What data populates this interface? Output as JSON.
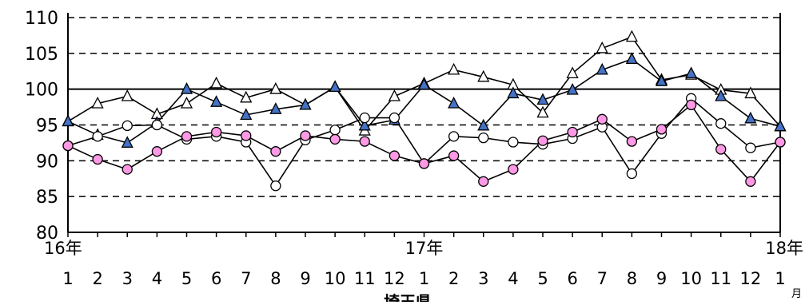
{
  "chart_data": {
    "type": "line",
    "ylim": [
      80,
      110
    ],
    "yticks": [
      "80",
      "85",
      "90",
      "95",
      "100",
      "105",
      "110"
    ],
    "reference_line": 100,
    "grid": "dashed horizontal at 85, 90, 95, 105, 110",
    "x": [
      "1",
      "2",
      "3",
      "4",
      "5",
      "6",
      "7",
      "8",
      "9",
      "10",
      "11",
      "12",
      "1",
      "2",
      "3",
      "4",
      "5",
      "6",
      "7",
      "8",
      "9",
      "10",
      "11",
      "12",
      "1"
    ],
    "year_labels": [
      {
        "label": "16年",
        "index": 0
      },
      {
        "label": "17年",
        "index": 12
      },
      {
        "label": "18年",
        "index": 24
      }
    ],
    "x_unit": "月",
    "caption": "埼玉県",
    "series": [
      {
        "marker": "triangle-open",
        "color": "#000000",
        "values": [
          95.5,
          98.0,
          99.0,
          96.5,
          98.0,
          100.8,
          98.8,
          100.0,
          97.8,
          100.3,
          94.2,
          99.0,
          100.8,
          102.7,
          101.7,
          100.6,
          96.7,
          102.2,
          105.7,
          107.3,
          101.3,
          102.0,
          99.9,
          99.4,
          94.8
        ]
      },
      {
        "marker": "triangle-filled",
        "color": "#4472c4",
        "values": [
          95.5,
          93.6,
          92.5,
          95.3,
          100.0,
          98.2,
          96.4,
          97.2,
          97.8,
          100.3,
          94.9,
          95.7,
          100.6,
          98.0,
          94.9,
          99.4,
          98.5,
          99.9,
          102.7,
          104.2,
          101.1,
          102.2,
          99.0,
          95.9,
          94.8
        ]
      },
      {
        "marker": "circle-open",
        "color": "#000000",
        "values": [
          92.1,
          93.4,
          94.9,
          95.0,
          93.0,
          93.4,
          92.6,
          86.5,
          92.9,
          94.3,
          96.0,
          96.0,
          89.6,
          93.4,
          93.2,
          92.6,
          92.3,
          93.1,
          94.7,
          88.2,
          93.8,
          98.7,
          95.2,
          91.8,
          92.6
        ]
      },
      {
        "marker": "circle-filled",
        "color": "#ff99e6",
        "values": [
          92.1,
          90.2,
          88.8,
          91.3,
          93.4,
          94.0,
          93.5,
          91.3,
          93.5,
          93.0,
          92.7,
          90.7,
          89.6,
          90.7,
          87.1,
          88.8,
          92.8,
          94.0,
          95.8,
          92.7,
          94.4,
          97.8,
          91.6,
          87.1,
          92.6
        ]
      }
    ]
  }
}
